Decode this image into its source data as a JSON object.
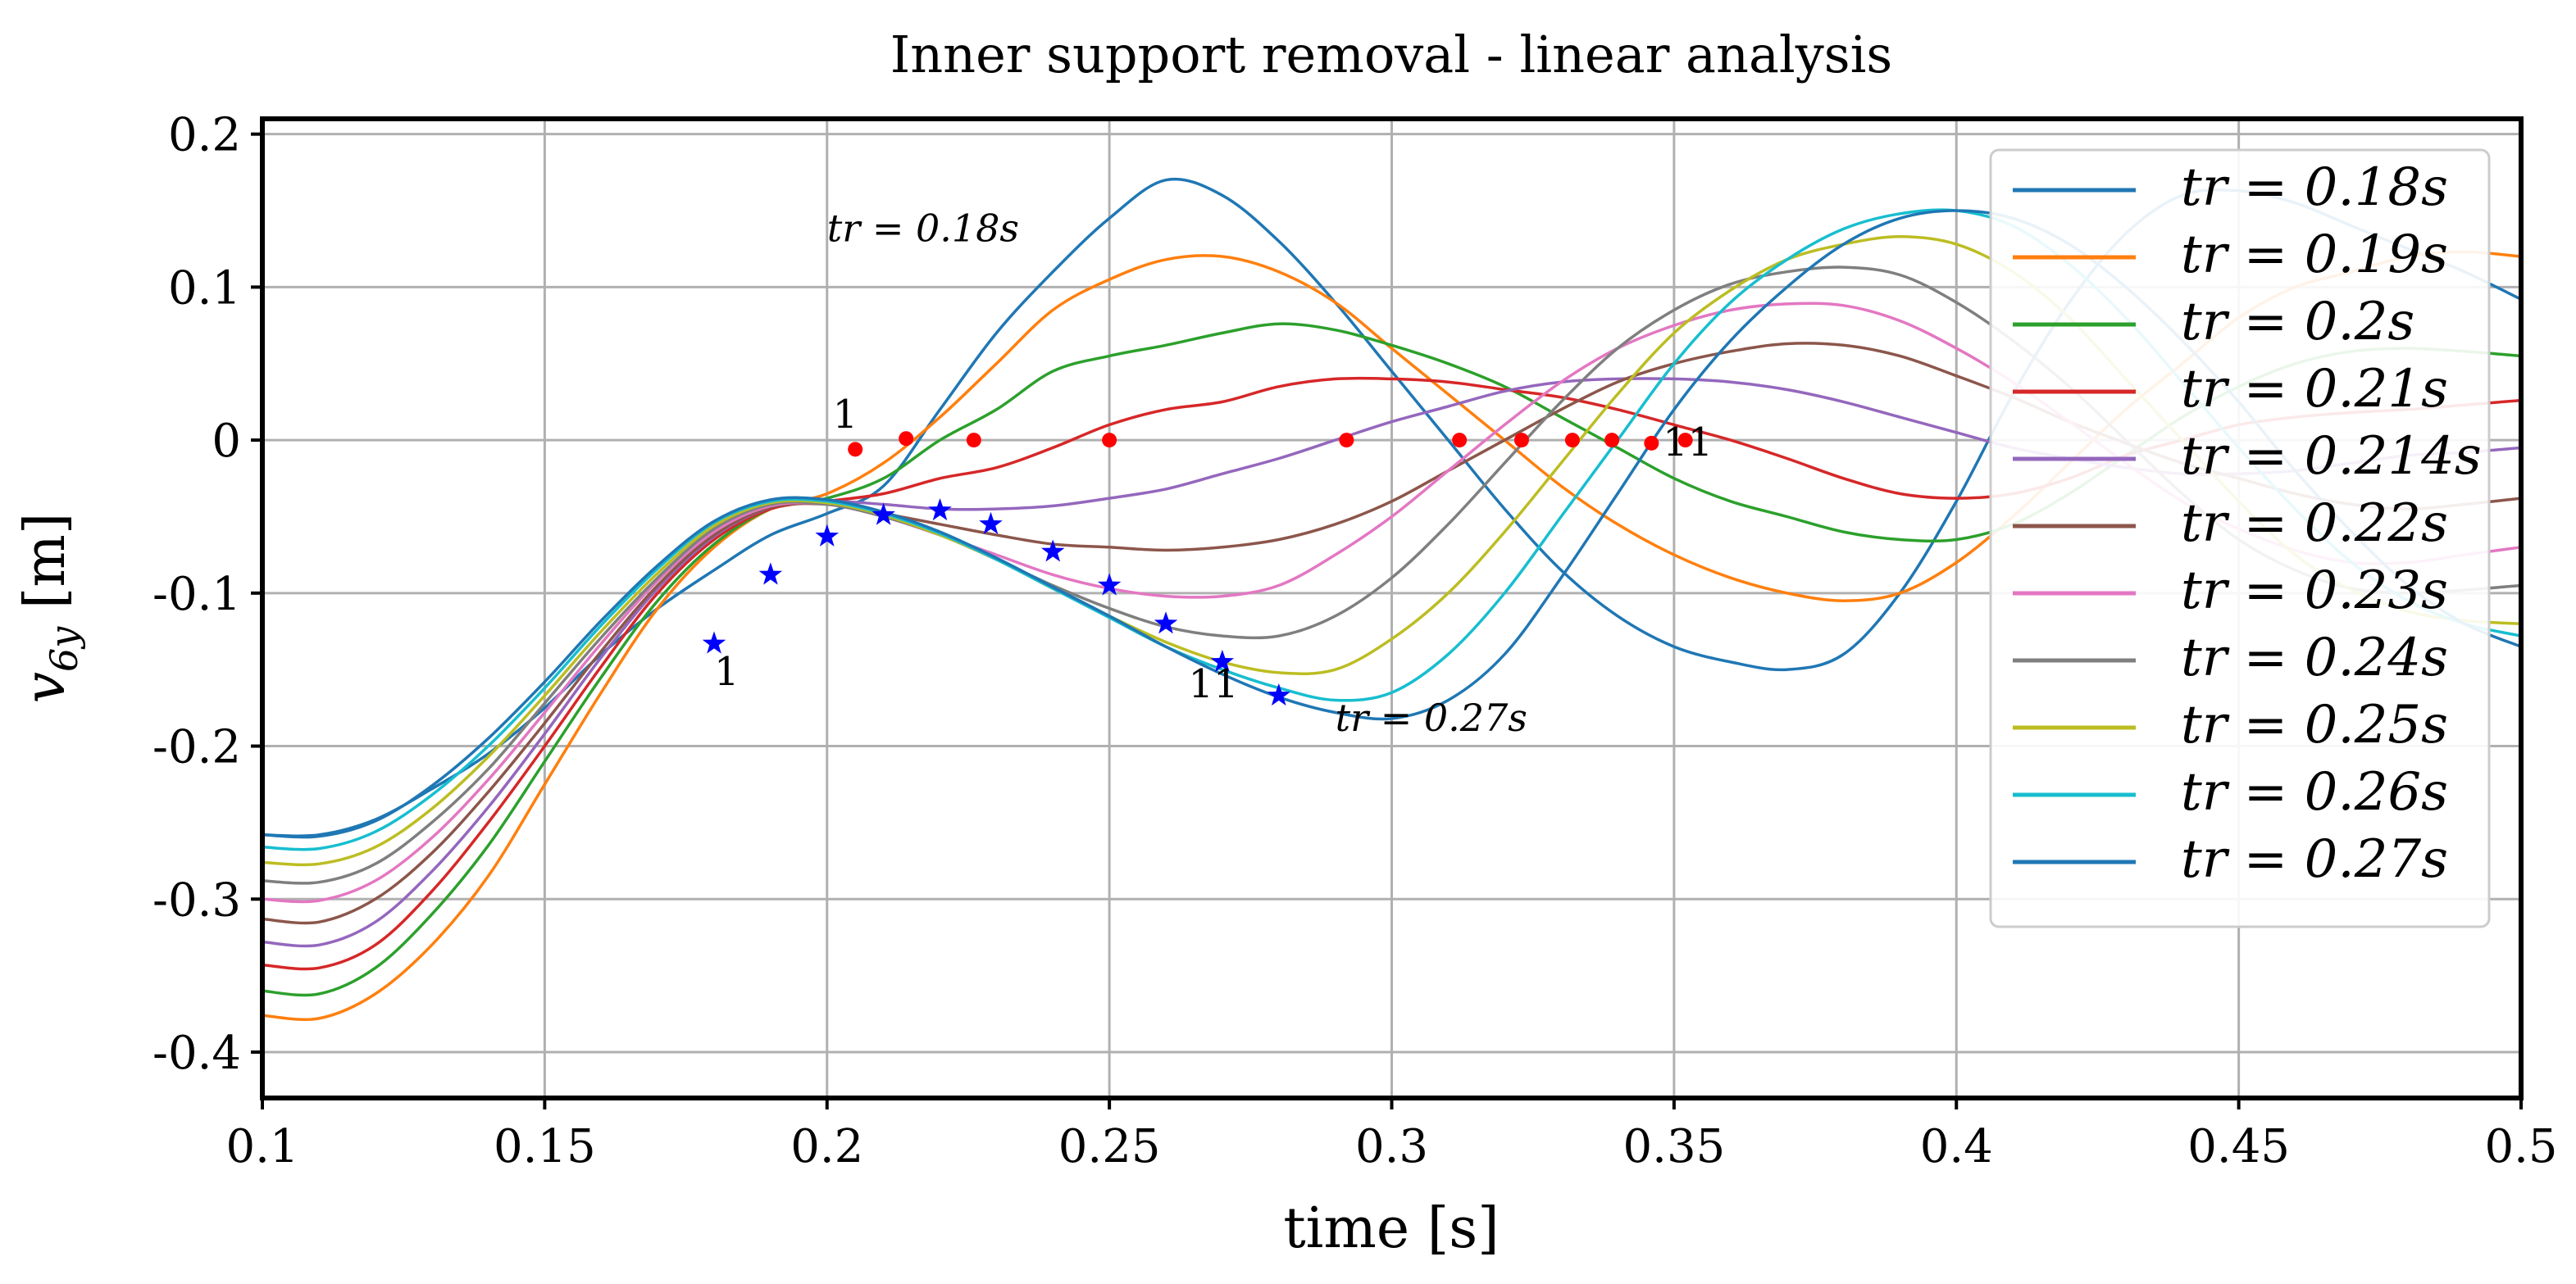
{
  "chart_data": {
    "type": "line",
    "title": "Inner support removal - linear analysis",
    "xlabel": "time [s]",
    "ylabel": "v6y [m]",
    "ylabel_main": "v",
    "ylabel_sub": "6y",
    "ylabel_units": " [m]",
    "xlim": [
      0.1,
      0.5
    ],
    "ylim": [
      -0.43,
      0.21
    ],
    "grid": true,
    "legend_position": "upper-right",
    "xticks": [
      0.1,
      0.15,
      0.2,
      0.25,
      0.3,
      0.35,
      0.4,
      0.45,
      0.5
    ],
    "xtick_labels": [
      "0.1",
      "0.15",
      "0.2",
      "0.25",
      "0.3",
      "0.35",
      "0.4",
      "0.45",
      "0.5"
    ],
    "yticks": [
      0.2,
      0.1,
      0,
      -0.1,
      -0.2,
      -0.3,
      -0.4
    ],
    "ytick_labels": [
      "0.2",
      "0.1",
      "0",
      "-0.1",
      "-0.2",
      "-0.3",
      "-0.4"
    ],
    "series": [
      {
        "name": "t_r = 0.18s",
        "legend_label": "tr = 0.18s",
        "color": "#1f77b4",
        "x": [
          0.1,
          0.11,
          0.12,
          0.13,
          0.14,
          0.15,
          0.16,
          0.17,
          0.18,
          0.19,
          0.2,
          0.21,
          0.22,
          0.23,
          0.24,
          0.25,
          0.26,
          0.27,
          0.28,
          0.29,
          0.3,
          0.31,
          0.32,
          0.33,
          0.34,
          0.35,
          0.36,
          0.37,
          0.38,
          0.39,
          0.4,
          0.41,
          0.42,
          0.43,
          0.44,
          0.45,
          0.46,
          0.47,
          0.48,
          0.49,
          0.5
        ],
        "y": [
          -0.258,
          -0.258,
          -0.248,
          -0.228,
          -0.205,
          -0.175,
          -0.14,
          -0.11,
          -0.085,
          -0.062,
          -0.048,
          -0.03,
          0.02,
          0.07,
          0.11,
          0.145,
          0.17,
          0.16,
          0.13,
          0.09,
          0.045,
          0.0,
          -0.045,
          -0.085,
          -0.115,
          -0.135,
          -0.145,
          -0.15,
          -0.14,
          -0.1,
          -0.04,
          0.03,
          0.09,
          0.135,
          0.16,
          0.163,
          0.155,
          0.14,
          0.125,
          0.11,
          0.092
        ]
      },
      {
        "name": "t_r = 0.19s",
        "legend_label": "tr = 0.19s",
        "color": "#ff7f0e",
        "x": [
          0.1,
          0.11,
          0.12,
          0.13,
          0.14,
          0.15,
          0.16,
          0.17,
          0.18,
          0.19,
          0.2,
          0.21,
          0.22,
          0.23,
          0.24,
          0.25,
          0.26,
          0.27,
          0.28,
          0.29,
          0.3,
          0.31,
          0.32,
          0.33,
          0.34,
          0.35,
          0.36,
          0.37,
          0.38,
          0.39,
          0.4,
          0.41,
          0.42,
          0.43,
          0.44,
          0.45,
          0.46,
          0.47,
          0.48,
          0.49,
          0.5
        ],
        "y": [
          -0.376,
          -0.378,
          -0.362,
          -0.33,
          -0.285,
          -0.225,
          -0.165,
          -0.11,
          -0.07,
          -0.045,
          -0.035,
          -0.015,
          0.015,
          0.05,
          0.085,
          0.105,
          0.118,
          0.12,
          0.11,
          0.09,
          0.06,
          0.03,
          0.0,
          -0.03,
          -0.055,
          -0.075,
          -0.09,
          -0.1,
          -0.105,
          -0.1,
          -0.08,
          -0.05,
          -0.015,
          0.02,
          0.05,
          0.08,
          0.1,
          0.11,
          0.12,
          0.123,
          0.12
        ]
      },
      {
        "name": "t_r = 0.2s",
        "legend_label": "tr = 0.2s",
        "color": "#2ca02c",
        "x": [
          0.1,
          0.11,
          0.12,
          0.13,
          0.14,
          0.15,
          0.16,
          0.17,
          0.18,
          0.19,
          0.2,
          0.21,
          0.22,
          0.23,
          0.24,
          0.25,
          0.26,
          0.27,
          0.28,
          0.29,
          0.3,
          0.31,
          0.32,
          0.33,
          0.34,
          0.35,
          0.36,
          0.37,
          0.38,
          0.39,
          0.4,
          0.41,
          0.42,
          0.43,
          0.44,
          0.45,
          0.46,
          0.47,
          0.48,
          0.49,
          0.5
        ],
        "y": [
          -0.36,
          -0.362,
          -0.345,
          -0.31,
          -0.265,
          -0.21,
          -0.155,
          -0.105,
          -0.068,
          -0.045,
          -0.038,
          -0.025,
          0.0,
          0.02,
          0.045,
          0.055,
          0.062,
          0.07,
          0.076,
          0.072,
          0.062,
          0.05,
          0.035,
          0.015,
          -0.005,
          -0.025,
          -0.04,
          -0.05,
          -0.06,
          -0.065,
          -0.065,
          -0.055,
          -0.035,
          -0.01,
          0.015,
          0.035,
          0.05,
          0.058,
          0.06,
          0.058,
          0.055
        ]
      },
      {
        "name": "t_r = 0.21s",
        "legend_label": "tr = 0.21s",
        "color": "#d62728",
        "x": [
          0.1,
          0.11,
          0.12,
          0.13,
          0.14,
          0.15,
          0.16,
          0.17,
          0.18,
          0.19,
          0.2,
          0.21,
          0.22,
          0.23,
          0.24,
          0.25,
          0.26,
          0.27,
          0.28,
          0.29,
          0.3,
          0.31,
          0.32,
          0.33,
          0.34,
          0.35,
          0.36,
          0.37,
          0.38,
          0.39,
          0.4,
          0.41,
          0.42,
          0.43,
          0.44,
          0.45,
          0.46,
          0.47,
          0.48,
          0.49,
          0.5
        ],
        "y": [
          -0.343,
          -0.345,
          -0.33,
          -0.295,
          -0.25,
          -0.2,
          -0.148,
          -0.1,
          -0.065,
          -0.045,
          -0.04,
          -0.035,
          -0.025,
          -0.018,
          -0.005,
          0.01,
          0.02,
          0.025,
          0.035,
          0.04,
          0.04,
          0.038,
          0.033,
          0.028,
          0.02,
          0.01,
          0.0,
          -0.012,
          -0.025,
          -0.035,
          -0.038,
          -0.035,
          -0.025,
          -0.01,
          0.0,
          0.01,
          0.015,
          0.018,
          0.02,
          0.023,
          0.026
        ]
      },
      {
        "name": "t_r = 0.214s",
        "legend_label": "tr = 0.214s",
        "color": "#9467bd",
        "x": [
          0.1,
          0.11,
          0.12,
          0.13,
          0.14,
          0.15,
          0.16,
          0.17,
          0.18,
          0.19,
          0.2,
          0.21,
          0.22,
          0.23,
          0.24,
          0.25,
          0.26,
          0.27,
          0.28,
          0.29,
          0.3,
          0.31,
          0.32,
          0.33,
          0.34,
          0.35,
          0.36,
          0.37,
          0.38,
          0.39,
          0.4,
          0.41,
          0.42,
          0.43,
          0.44,
          0.45,
          0.46,
          0.47,
          0.48,
          0.49,
          0.5
        ],
        "y": [
          -0.328,
          -0.33,
          -0.315,
          -0.282,
          -0.24,
          -0.192,
          -0.142,
          -0.097,
          -0.063,
          -0.044,
          -0.04,
          -0.042,
          -0.045,
          -0.045,
          -0.043,
          -0.038,
          -0.032,
          -0.022,
          -0.012,
          0.0,
          0.012,
          0.022,
          0.032,
          0.038,
          0.04,
          0.04,
          0.038,
          0.033,
          0.025,
          0.015,
          0.005,
          -0.005,
          -0.012,
          -0.018,
          -0.022,
          -0.022,
          -0.02,
          -0.015,
          -0.01,
          -0.008,
          -0.005
        ]
      },
      {
        "name": "t_r = 0.22s",
        "legend_label": "tr = 0.22s",
        "color": "#8c564b",
        "x": [
          0.1,
          0.11,
          0.12,
          0.13,
          0.14,
          0.15,
          0.16,
          0.17,
          0.18,
          0.19,
          0.2,
          0.21,
          0.22,
          0.23,
          0.24,
          0.25,
          0.26,
          0.27,
          0.28,
          0.29,
          0.3,
          0.31,
          0.32,
          0.33,
          0.34,
          0.35,
          0.36,
          0.37,
          0.38,
          0.39,
          0.4,
          0.41,
          0.42,
          0.43,
          0.44,
          0.45,
          0.46,
          0.47,
          0.48,
          0.49,
          0.5
        ],
        "y": [
          -0.313,
          -0.315,
          -0.3,
          -0.27,
          -0.23,
          -0.185,
          -0.138,
          -0.095,
          -0.062,
          -0.044,
          -0.042,
          -0.048,
          -0.055,
          -0.062,
          -0.068,
          -0.07,
          -0.072,
          -0.07,
          -0.065,
          -0.055,
          -0.04,
          -0.02,
          0.0,
          0.02,
          0.038,
          0.05,
          0.058,
          0.063,
          0.062,
          0.055,
          0.042,
          0.028,
          0.012,
          -0.002,
          -0.015,
          -0.025,
          -0.035,
          -0.042,
          -0.045,
          -0.042,
          -0.038
        ]
      },
      {
        "name": "t_r = 0.23s",
        "legend_label": "tr = 0.23s",
        "color": "#e377c2",
        "x": [
          0.1,
          0.11,
          0.12,
          0.13,
          0.14,
          0.15,
          0.16,
          0.17,
          0.18,
          0.19,
          0.2,
          0.21,
          0.22,
          0.23,
          0.24,
          0.25,
          0.26,
          0.27,
          0.28,
          0.29,
          0.3,
          0.31,
          0.32,
          0.33,
          0.34,
          0.35,
          0.36,
          0.37,
          0.38,
          0.39,
          0.4,
          0.41,
          0.42,
          0.43,
          0.44,
          0.45,
          0.46,
          0.47,
          0.48,
          0.49,
          0.5
        ],
        "y": [
          -0.3,
          -0.301,
          -0.288,
          -0.26,
          -0.222,
          -0.178,
          -0.133,
          -0.092,
          -0.06,
          -0.043,
          -0.042,
          -0.05,
          -0.062,
          -0.075,
          -0.088,
          -0.097,
          -0.102,
          -0.102,
          -0.095,
          -0.075,
          -0.05,
          -0.02,
          0.01,
          0.038,
          0.06,
          0.075,
          0.085,
          0.089,
          0.088,
          0.078,
          0.06,
          0.038,
          0.012,
          -0.015,
          -0.04,
          -0.058,
          -0.072,
          -0.08,
          -0.08,
          -0.075,
          -0.07
        ]
      },
      {
        "name": "t_r = 0.24s",
        "legend_label": "tr = 0.24s",
        "color": "#7f7f7f",
        "x": [
          0.1,
          0.11,
          0.12,
          0.13,
          0.14,
          0.15,
          0.16,
          0.17,
          0.18,
          0.19,
          0.2,
          0.21,
          0.22,
          0.23,
          0.24,
          0.25,
          0.26,
          0.27,
          0.28,
          0.29,
          0.3,
          0.31,
          0.32,
          0.33,
          0.34,
          0.35,
          0.36,
          0.37,
          0.38,
          0.39,
          0.4,
          0.41,
          0.42,
          0.43,
          0.44,
          0.45,
          0.46,
          0.47,
          0.48,
          0.49,
          0.5
        ],
        "y": [
          -0.288,
          -0.289,
          -0.277,
          -0.25,
          -0.215,
          -0.172,
          -0.129,
          -0.09,
          -0.058,
          -0.042,
          -0.042,
          -0.05,
          -0.062,
          -0.078,
          -0.095,
          -0.11,
          -0.122,
          -0.128,
          -0.128,
          -0.115,
          -0.09,
          -0.055,
          -0.015,
          0.025,
          0.06,
          0.085,
          0.102,
          0.11,
          0.113,
          0.108,
          0.09,
          0.065,
          0.035,
          0.0,
          -0.035,
          -0.065,
          -0.085,
          -0.097,
          -0.1,
          -0.098,
          -0.095
        ]
      },
      {
        "name": "t_r = 0.25s",
        "legend_label": "tr = 0.25s",
        "color": "#bcbd22",
        "x": [
          0.1,
          0.11,
          0.12,
          0.13,
          0.14,
          0.15,
          0.16,
          0.17,
          0.18,
          0.19,
          0.2,
          0.21,
          0.22,
          0.23,
          0.24,
          0.25,
          0.26,
          0.27,
          0.28,
          0.29,
          0.3,
          0.31,
          0.32,
          0.33,
          0.34,
          0.35,
          0.36,
          0.37,
          0.38,
          0.39,
          0.4,
          0.41,
          0.42,
          0.43,
          0.44,
          0.45,
          0.46,
          0.47,
          0.48,
          0.49,
          0.5
        ],
        "y": [
          -0.276,
          -0.277,
          -0.266,
          -0.241,
          -0.207,
          -0.167,
          -0.125,
          -0.087,
          -0.056,
          -0.041,
          -0.041,
          -0.049,
          -0.062,
          -0.078,
          -0.097,
          -0.115,
          -0.132,
          -0.145,
          -0.152,
          -0.15,
          -0.13,
          -0.1,
          -0.06,
          -0.015,
          0.03,
          0.07,
          0.098,
          0.118,
          0.128,
          0.133,
          0.128,
          0.11,
          0.08,
          0.04,
          0.0,
          -0.04,
          -0.075,
          -0.098,
          -0.112,
          -0.118,
          -0.12
        ]
      },
      {
        "name": "t_r = 0.26s",
        "legend_label": "tr = 0.26s",
        "color": "#17becf",
        "x": [
          0.1,
          0.11,
          0.12,
          0.13,
          0.14,
          0.15,
          0.16,
          0.17,
          0.18,
          0.19,
          0.2,
          0.21,
          0.22,
          0.23,
          0.24,
          0.25,
          0.26,
          0.27,
          0.28,
          0.29,
          0.3,
          0.31,
          0.32,
          0.33,
          0.34,
          0.35,
          0.36,
          0.37,
          0.38,
          0.39,
          0.4,
          0.41,
          0.42,
          0.43,
          0.44,
          0.45,
          0.46,
          0.47,
          0.48,
          0.49,
          0.5
        ],
        "y": [
          -0.266,
          -0.267,
          -0.256,
          -0.232,
          -0.2,
          -0.162,
          -0.121,
          -0.084,
          -0.054,
          -0.04,
          -0.04,
          -0.048,
          -0.061,
          -0.078,
          -0.097,
          -0.116,
          -0.135,
          -0.15,
          -0.162,
          -0.17,
          -0.165,
          -0.14,
          -0.1,
          -0.05,
          0.0,
          0.05,
          0.09,
          0.118,
          0.138,
          0.148,
          0.15,
          0.14,
          0.115,
          0.08,
          0.038,
          -0.005,
          -0.045,
          -0.08,
          -0.105,
          -0.12,
          -0.128
        ]
      },
      {
        "name": "t_r = 0.27s",
        "legend_label": "tr = 0.27s",
        "color": "#1f77b4",
        "x": [
          0.1,
          0.11,
          0.12,
          0.13,
          0.14,
          0.15,
          0.16,
          0.17,
          0.18,
          0.19,
          0.2,
          0.21,
          0.22,
          0.23,
          0.24,
          0.25,
          0.26,
          0.27,
          0.28,
          0.29,
          0.3,
          0.31,
          0.32,
          0.33,
          0.34,
          0.35,
          0.36,
          0.37,
          0.38,
          0.39,
          0.4,
          0.41,
          0.42,
          0.43,
          0.44,
          0.45,
          0.46,
          0.47,
          0.48,
          0.49,
          0.5
        ],
        "y": [
          -0.258,
          -0.259,
          -0.249,
          -0.226,
          -0.195,
          -0.158,
          -0.118,
          -0.082,
          -0.053,
          -0.039,
          -0.039,
          -0.047,
          -0.06,
          -0.077,
          -0.096,
          -0.115,
          -0.135,
          -0.153,
          -0.168,
          -0.178,
          -0.182,
          -0.17,
          -0.14,
          -0.09,
          -0.035,
          0.02,
          0.065,
          0.1,
          0.128,
          0.145,
          0.15,
          0.145,
          0.128,
          0.1,
          0.065,
          0.025,
          -0.02,
          -0.06,
          -0.095,
          -0.12,
          -0.135
        ]
      }
    ],
    "red_markers": {
      "color": "#ff0000",
      "x": [
        0.205,
        0.214,
        0.226,
        0.25,
        0.292,
        0.312,
        0.323,
        0.332,
        0.339,
        0.346,
        0.352
      ],
      "y": [
        -0.006,
        0.001,
        0.0,
        0.0,
        0.0,
        0.0,
        0.0,
        0.0,
        0.0,
        -0.002,
        0.0
      ]
    },
    "blue_markers": {
      "color": "#0000ff",
      "x": [
        0.18,
        0.19,
        0.2,
        0.21,
        0.22,
        0.229,
        0.24,
        0.25,
        0.26,
        0.27,
        0.28
      ],
      "y": [
        -0.133,
        -0.088,
        -0.063,
        -0.049,
        -0.046,
        -0.055,
        -0.073,
        -0.095,
        -0.12,
        -0.145,
        -0.167
      ]
    },
    "annotations": [
      {
        "text": "1",
        "x": 0.201,
        "y": 0.008,
        "style": "plain"
      },
      {
        "text": "11",
        "x": 0.348,
        "y": -0.01,
        "style": "plain"
      },
      {
        "text": "1",
        "x": 0.18,
        "y": -0.16,
        "style": "plain"
      },
      {
        "text": "11",
        "x": 0.264,
        "y": -0.168,
        "style": "plain"
      },
      {
        "text": "tr = 0.18s",
        "x": 0.2,
        "y": 0.13,
        "style": "italic"
      },
      {
        "text": "tr = 0.27s",
        "x": 0.29,
        "y": -0.19,
        "style": "italic"
      }
    ]
  }
}
